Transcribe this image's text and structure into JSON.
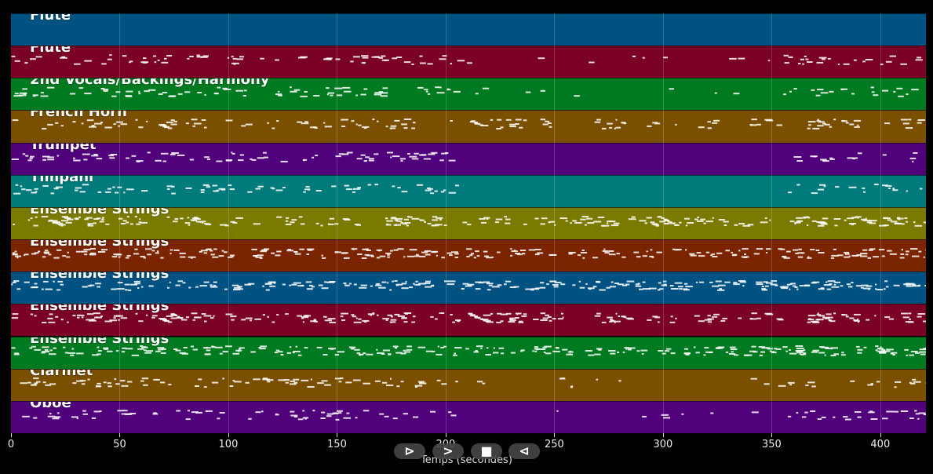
{
  "tracks": [
    {
      "label": "Flute",
      "color": "#005282"
    },
    {
      "label": "Flute",
      "color": "#7a0026"
    },
    {
      "label": "2nd Vocals/Backings/Harmony",
      "color": "#007a20"
    },
    {
      "label": "French Horn",
      "color": "#7a5000"
    },
    {
      "label": "Trumpet",
      "color": "#50007a"
    },
    {
      "label": "Timpani",
      "color": "#007a7a"
    },
    {
      "label": "Ensemble Strings",
      "color": "#7a7a00"
    },
    {
      "label": "Ensemble Strings",
      "color": "#7a2400"
    },
    {
      "label": "Ensemble Strings",
      "color": "#005282"
    },
    {
      "label": "Ensemble Strings",
      "color": "#7a0026"
    },
    {
      "label": "Ensemble Strings",
      "color": "#007a20"
    },
    {
      "label": "Clarinet",
      "color": "#7a5000"
    },
    {
      "label": "Oboe",
      "color": "#50007a"
    }
  ],
  "axis": {
    "label": "Temps (secondes)",
    "ticks": [
      "0",
      "50",
      "100",
      "150",
      "200",
      "250",
      "300",
      "350",
      "400"
    ],
    "max_seconds": 421
  },
  "transport": {
    "play_label": "⊳",
    "forward_label": ">",
    "stop_label": "■",
    "back_label": "⊲"
  }
}
